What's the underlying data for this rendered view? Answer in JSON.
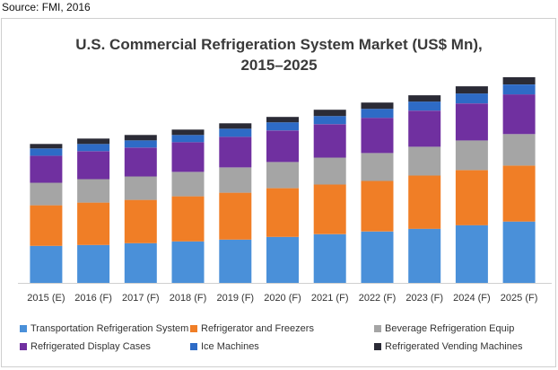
{
  "source": "Source: FMI, 2016",
  "chart_data": {
    "type": "bar",
    "stacked": true,
    "title_line1": "U.S. Commercial Refrigeration System Market (US$ Mn),",
    "title_line2": "2015–2025",
    "categories": [
      "2015 (E)",
      "2016 (F)",
      "2017 (F)",
      "2018 (F)",
      "2019 (F)",
      "2020 (F)",
      "2021 (F)",
      "2022 (F)",
      "2023 (F)",
      "2024 (F)",
      "2025 (F)"
    ],
    "ylim": [
      0,
      236
    ],
    "grid": false,
    "legend_position": "bottom",
    "series": [
      {
        "name": "Transportation Refrigeration System",
        "color": "#4a90d9",
        "values": [
          41,
          42,
          44,
          46,
          48,
          51,
          54,
          57,
          60,
          64,
          68
        ]
      },
      {
        "name": "Refrigerator and Freezers",
        "color": "#f07e26",
        "values": [
          45,
          47,
          48,
          50,
          52,
          54,
          55,
          56,
          59,
          61,
          62
        ]
      },
      {
        "name": "Beverage Refrigeration Equip",
        "color": "#a5a5a5",
        "values": [
          25,
          26,
          26,
          27,
          28,
          29,
          30,
          31,
          32,
          33,
          35
        ]
      },
      {
        "name": "Refrigerated Display Cases",
        "color": "#7030a0",
        "values": [
          30,
          31,
          32,
          33,
          34,
          35,
          37,
          39,
          40,
          41,
          44
        ]
      },
      {
        "name": "Ice Machines",
        "color": "#2e6bc6",
        "values": [
          8,
          8,
          8,
          8,
          9,
          9,
          9,
          10,
          10,
          11,
          11
        ]
      },
      {
        "name": "Refrigerated Vending Machines",
        "color": "#2b2b36",
        "values": [
          5,
          6,
          6,
          6,
          6,
          6,
          7,
          7,
          7,
          8,
          8
        ]
      }
    ]
  }
}
